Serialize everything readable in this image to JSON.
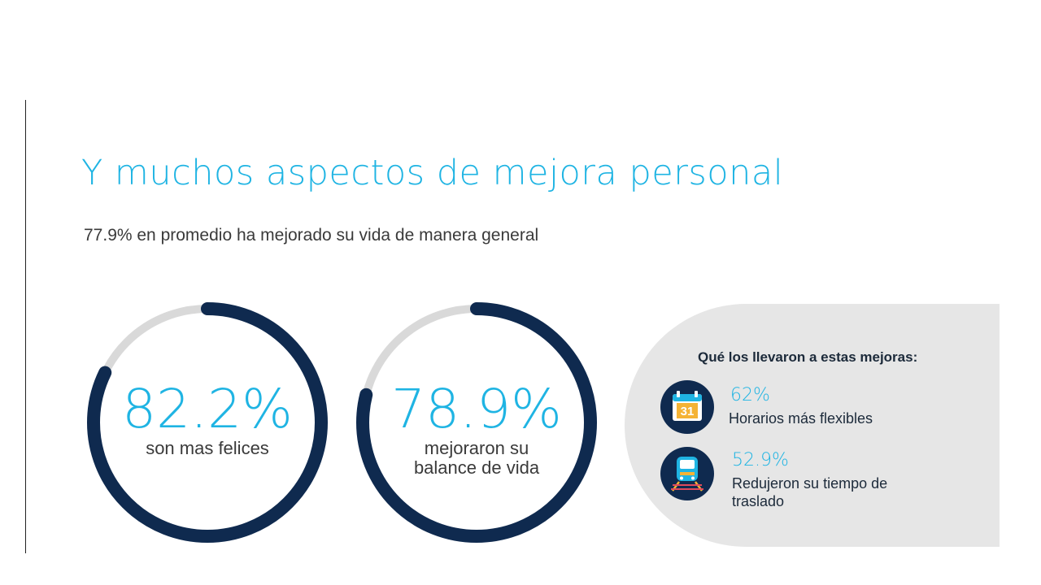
{
  "slide": {
    "title": "Y muchos aspectos de mejora personal",
    "subtitle": "77.9% en promedio ha mejorado su vida de manera general"
  },
  "stats": [
    {
      "percent_label": "82.2%",
      "value": 82.2,
      "caption": "son mas felices"
    },
    {
      "percent_label": "78.9%",
      "value": 78.9,
      "caption": "mejoraron su balance de vida"
    }
  ],
  "panel": {
    "title": "Qué los llevaron a estas mejoras:",
    "reasons": [
      {
        "percent": "62%",
        "label": "Horarios más flexibles",
        "icon": "calendar-icon",
        "icon_text": "31"
      },
      {
        "percent": "52.9%",
        "label": "Redujeron su tiempo de traslado",
        "icon": "train-icon"
      }
    ]
  },
  "colors": {
    "accent": "#1fb4e3",
    "ring": "#0f2a4f",
    "ring_track": "#d9d9d9",
    "panel_bg": "#e6e6e6"
  }
}
